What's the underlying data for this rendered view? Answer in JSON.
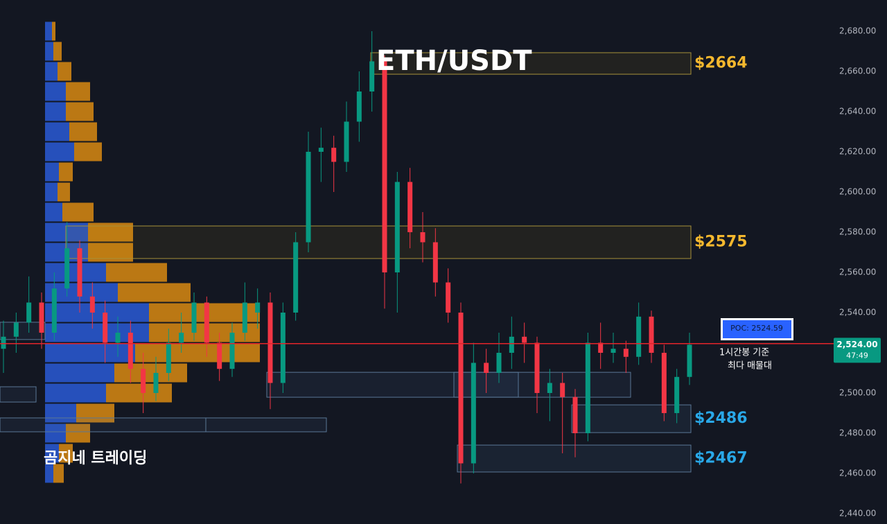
{
  "chart_data": {
    "type": "candlestick",
    "title": "ETH/USDT",
    "watermark": "곰지네 트레이딩",
    "annotation": [
      "1시간봉 기준",
      "최다 매물대"
    ],
    "up_color": "#089981",
    "down_color": "#f23645",
    "ylim": [
      2440,
      2680
    ],
    "yticks": [
      {
        "value": 2440,
        "label": "2,440.00"
      },
      {
        "value": 2460,
        "label": "2,460.00"
      },
      {
        "value": 2480,
        "label": "2,480.00"
      },
      {
        "value": 2500,
        "label": "2,500.00"
      },
      {
        "value": 2520,
        "label": "2,520.00"
      },
      {
        "value": 2540,
        "label": "2,540.00"
      },
      {
        "value": 2560,
        "label": "2,560.00"
      },
      {
        "value": 2580,
        "label": "2,580.00"
      },
      {
        "value": 2600,
        "label": "2,600.00"
      },
      {
        "value": 2620,
        "label": "2,620.00"
      },
      {
        "value": 2640,
        "label": "2,640.00"
      },
      {
        "value": 2660,
        "label": "2,660.00"
      },
      {
        "value": 2680,
        "label": "2,680.00"
      }
    ],
    "ohlc": [
      [
        2522,
        2536,
        2510,
        2528
      ],
      [
        2528,
        2540,
        2520,
        2535
      ],
      [
        2535,
        2558,
        2530,
        2545
      ],
      [
        2545,
        2550,
        2522,
        2530
      ],
      [
        2530,
        2560,
        2526,
        2552
      ],
      [
        2552,
        2585,
        2548,
        2572
      ],
      [
        2572,
        2576,
        2540,
        2548
      ],
      [
        2548,
        2555,
        2532,
        2540
      ],
      [
        2540,
        2546,
        2515,
        2525
      ],
      [
        2525,
        2538,
        2518,
        2530
      ],
      [
        2530,
        2536,
        2505,
        2512
      ],
      [
        2512,
        2520,
        2490,
        2500
      ],
      [
        2500,
        2518,
        2496,
        2510
      ],
      [
        2510,
        2532,
        2506,
        2525
      ],
      [
        2525,
        2540,
        2520,
        2530
      ],
      [
        2530,
        2550,
        2526,
        2545
      ],
      [
        2545,
        2548,
        2518,
        2525
      ],
      [
        2525,
        2530,
        2506,
        2512
      ],
      [
        2512,
        2535,
        2508,
        2530
      ],
      [
        2530,
        2555,
        2526,
        2545
      ],
      [
        2540,
        2552,
        2532,
        2545
      ],
      [
        2545,
        2550,
        2492,
        2505
      ],
      [
        2505,
        2545,
        2500,
        2540
      ],
      [
        2540,
        2580,
        2536,
        2575
      ],
      [
        2575,
        2630,
        2570,
        2620
      ],
      [
        2620,
        2632,
        2605,
        2622
      ],
      [
        2622,
        2628,
        2600,
        2615
      ],
      [
        2615,
        2645,
        2610,
        2635
      ],
      [
        2635,
        2660,
        2625,
        2650
      ],
      [
        2650,
        2680,
        2640,
        2665
      ],
      [
        2665,
        2668,
        2542,
        2560
      ],
      [
        2560,
        2610,
        2540,
        2605
      ],
      [
        2605,
        2612,
        2572,
        2580
      ],
      [
        2580,
        2590,
        2565,
        2575
      ],
      [
        2575,
        2582,
        2548,
        2555
      ],
      [
        2555,
        2562,
        2535,
        2540
      ],
      [
        2540,
        2545,
        2455,
        2465
      ],
      [
        2465,
        2525,
        2460,
        2515
      ],
      [
        2515,
        2522,
        2500,
        2510
      ],
      [
        2510,
        2530,
        2505,
        2520
      ],
      [
        2520,
        2538,
        2512,
        2528
      ],
      [
        2528,
        2535,
        2515,
        2525
      ],
      [
        2525,
        2528,
        2490,
        2500
      ],
      [
        2500,
        2512,
        2486,
        2505
      ],
      [
        2505,
        2510,
        2470,
        2498
      ],
      [
        2498,
        2502,
        2468,
        2480
      ],
      [
        2480,
        2530,
        2476,
        2525
      ],
      [
        2525,
        2535,
        2512,
        2520
      ],
      [
        2520,
        2530,
        2515,
        2522
      ],
      [
        2522,
        2526,
        2510,
        2518
      ],
      [
        2518,
        2545,
        2514,
        2538
      ],
      [
        2538,
        2541,
        2515,
        2520
      ],
      [
        2520,
        2524,
        2486,
        2490
      ],
      [
        2490,
        2512,
        2485,
        2508
      ],
      [
        2508,
        2530,
        2504,
        2524
      ]
    ],
    "volume_profile": {
      "bins": [
        2455,
        2465,
        2475,
        2485,
        2495,
        2505,
        2515,
        2525,
        2535,
        2545,
        2555,
        2565,
        2575,
        2585,
        2595,
        2605,
        2615,
        2625,
        2635,
        2645,
        2655,
        2665,
        2675,
        2685
      ],
      "buy": [
        12,
        20,
        30,
        45,
        88,
        100,
        130,
        150,
        150,
        105,
        88,
        62,
        62,
        25,
        18,
        20,
        42,
        35,
        30,
        30,
        18,
        12,
        10
      ],
      "sell": [
        15,
        20,
        35,
        55,
        95,
        105,
        180,
        160,
        160,
        105,
        88,
        65,
        65,
        45,
        18,
        20,
        40,
        40,
        40,
        35,
        20,
        12,
        5
      ],
      "buy_color": "#2a5ad6",
      "sell_color": "#d98a12"
    },
    "zones": [
      {
        "label": "$2664",
        "low": 2658.6,
        "high": 2669.3,
        "color": "#f5b82e"
      },
      {
        "label": "$2575",
        "low": 2566.9,
        "high": 2583.1,
        "color": "#f5b82e"
      },
      {
        "label": "$2486",
        "low": 2480.3,
        "high": 2494.1,
        "color": "#29a8e8"
      },
      {
        "label": "$2467",
        "low": 2460.7,
        "high": 2474.1,
        "color": "#29a8e8"
      }
    ],
    "boxes": [
      {
        "low": 2497.9,
        "high": 2510.3
      },
      {
        "low": 2497.9,
        "high": 2510.3
      },
      {
        "low": 2480.7,
        "high": 2487.6
      },
      {
        "low": 2480.7,
        "high": 2487.6
      },
      {
        "low": 2495.5,
        "high": 2503.1
      },
      {
        "low": 2526.6,
        "high": 2535.2
      }
    ],
    "poc": {
      "value": 2524.59,
      "label": "POC: 2524.59",
      "color": "#e5242b"
    },
    "last_price": {
      "value": 2524,
      "label": "2,524.00",
      "countdown": "47:49",
      "color": "#089981"
    }
  }
}
